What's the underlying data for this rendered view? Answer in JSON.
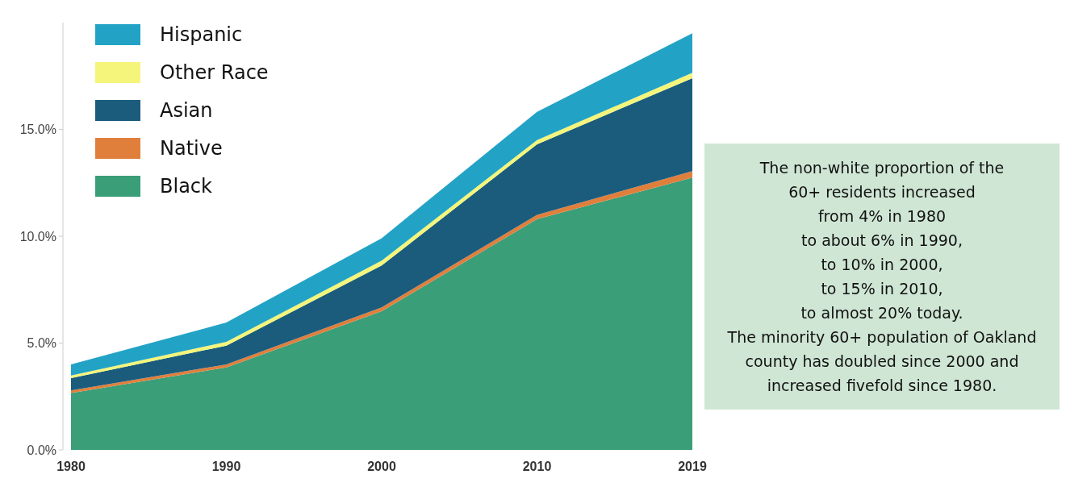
{
  "chart_data": {
    "type": "area",
    "stacked": true,
    "categories": [
      "1980",
      "1990",
      "2000",
      "2010",
      "2019"
    ],
    "series": [
      {
        "name": "Black",
        "color": "#3a9e78",
        "values": [
          2.66,
          3.86,
          6.49,
          10.8,
          12.75
        ]
      },
      {
        "name": "Native",
        "color": "#e07f3c",
        "values": [
          0.12,
          0.14,
          0.18,
          0.2,
          0.3
        ]
      },
      {
        "name": "Asian",
        "color": "#1b5c7d",
        "values": [
          0.58,
          0.88,
          1.96,
          3.3,
          4.35
        ]
      },
      {
        "name": "Other Race",
        "color": "#f4f57a",
        "values": [
          0.12,
          0.18,
          0.23,
          0.2,
          0.25
        ]
      },
      {
        "name": "Hispanic",
        "color": "#22a3c6",
        "values": [
          0.52,
          0.9,
          1.05,
          1.32,
          1.85
        ]
      }
    ],
    "ylim": [
      0,
      20
    ],
    "yticks": [
      {
        "value": 0,
        "label": "0.0%"
      },
      {
        "value": 5,
        "label": "5.0%"
      },
      {
        "value": 10,
        "label": "10.0%"
      },
      {
        "value": 15,
        "label": "15.0%"
      }
    ],
    "legend": "top left",
    "annotations": [
      "The non-white proportion of the\n60+ residents increased\nfrom 4% in 1980\nto about 6% in 1990,\nto 10% in 2000,\nto 15% in 2010,\nto almost 20% today.",
      "The minority 60+ population of Oakland\ncounty has doubled since 2000 and\nincreased fivefold since 1980."
    ]
  }
}
